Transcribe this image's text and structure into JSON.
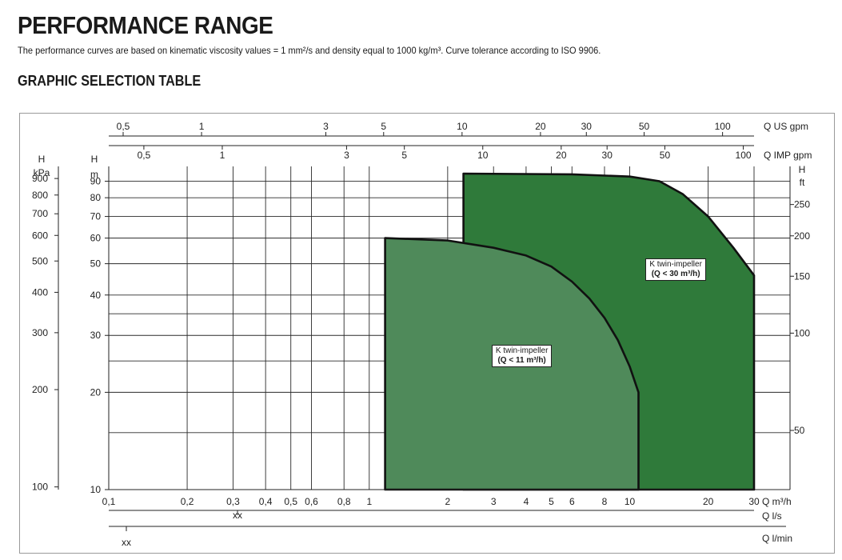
{
  "header": {
    "title": "PERFORMANCE RANGE",
    "description": "The performance curves are based on kinematic viscosity values = 1 mm²/s and density equal to 1000 kg/m³. Curve tolerance according to ISO 9906.",
    "subtitle": "GRAPHIC SELECTION TABLE"
  },
  "chart_data": {
    "type": "area",
    "x_scale": "log",
    "y_scale": "log",
    "xlim": [
      0.1,
      30
    ],
    "ylim": [
      10,
      100
    ],
    "grid": true,
    "axes": {
      "bottom_primary": {
        "label": "Q m³/h",
        "ticks": [
          "0,1",
          "0,2",
          "0,3",
          "0,4",
          "0,5",
          "0,6",
          "0,8",
          "1",
          "2",
          "3",
          "4",
          "5",
          "6",
          "8",
          "10",
          "20",
          "30"
        ]
      },
      "bottom_secondary": {
        "label": "Q l/s",
        "ticks": [
          "xx"
        ]
      },
      "bottom_tertiary": {
        "label": "Q l/min",
        "ticks": [
          "xx"
        ]
      },
      "top_primary": {
        "label": "Q US gpm",
        "ticks": [
          "0,5",
          "1",
          "3",
          "5",
          "10",
          "20",
          "30",
          "50",
          "100"
        ]
      },
      "top_secondary": {
        "label": "Q IMP gpm",
        "ticks": [
          "0,5",
          "1",
          "3",
          "5",
          "10",
          "20",
          "30",
          "50",
          "100"
        ]
      },
      "left_m": {
        "label_line1": "H",
        "label_line2": "m",
        "ticks": [
          "10",
          "20",
          "30",
          "40",
          "50",
          "60",
          "70",
          "80",
          "90"
        ]
      },
      "left_kpa": {
        "label_line1": "H",
        "label_line2": "kPa",
        "ticks": [
          "100",
          "200",
          "300",
          "400",
          "500",
          "600",
          "700",
          "800",
          "900"
        ]
      },
      "right_ft": {
        "label_line1": "H",
        "label_line2": "ft",
        "ticks": [
          "50",
          "100",
          "150",
          "200",
          "250"
        ]
      }
    },
    "series": [
      {
        "name": "K twin-impeller (Q < 30 m³/h)",
        "label_line1": "K twin-impeller",
        "label_line2": "(Q < 30 m³/h)",
        "color": "#2e6b35",
        "fill_color": "#2f7a3a",
        "points": [
          [
            2.3,
            10
          ],
          [
            2.3,
            95
          ],
          [
            6,
            94.5
          ],
          [
            10,
            93
          ],
          [
            13,
            90
          ],
          [
            16,
            82
          ],
          [
            20,
            70
          ],
          [
            25,
            56
          ],
          [
            30,
            46
          ],
          [
            30,
            10
          ]
        ]
      },
      {
        "name": "K twin-impeller (Q < 11 m³/h)",
        "label_line1": "K twin-impeller",
        "label_line2": "(Q < 11 m³/h)",
        "color": "#3f7b4b",
        "fill_color": "#4f8a5a",
        "points": [
          [
            1.15,
            10
          ],
          [
            1.15,
            60
          ],
          [
            2,
            59
          ],
          [
            3,
            56
          ],
          [
            4,
            53
          ],
          [
            5,
            49
          ],
          [
            6,
            44
          ],
          [
            7,
            39
          ],
          [
            8,
            34
          ],
          [
            9,
            29
          ],
          [
            10,
            24
          ],
          [
            10.8,
            20
          ],
          [
            10.8,
            10
          ]
        ]
      }
    ]
  }
}
